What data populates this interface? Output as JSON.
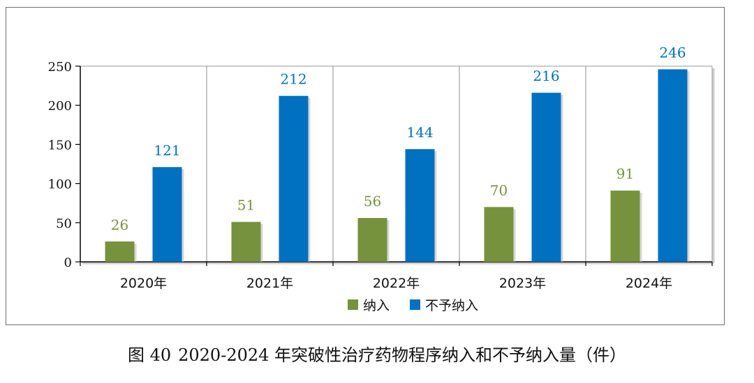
{
  "colors": {
    "admitted": "#76923c",
    "not_admitted": "#0070c0",
    "admitted_label": "#76923c",
    "not_admitted_label": "#0070c0"
  },
  "caption": {
    "figure_number": "图 40",
    "title": "2020-2024 年突破性治疗药物程序纳入和不予纳入量（件）"
  },
  "chart_data": {
    "type": "bar",
    "categories": [
      "2020年",
      "2021年",
      "2022年",
      "2023年",
      "2024年"
    ],
    "series": [
      {
        "name": "纳入",
        "values": [
          26,
          51,
          56,
          70,
          91
        ]
      },
      {
        "name": "不予纳入",
        "values": [
          121,
          212,
          144,
          216,
          246
        ]
      }
    ],
    "yticks": [
      "0",
      "50",
      "100",
      "150",
      "200",
      "250"
    ],
    "ylim": [
      0,
      250
    ],
    "legend_position": "bottom-center"
  }
}
